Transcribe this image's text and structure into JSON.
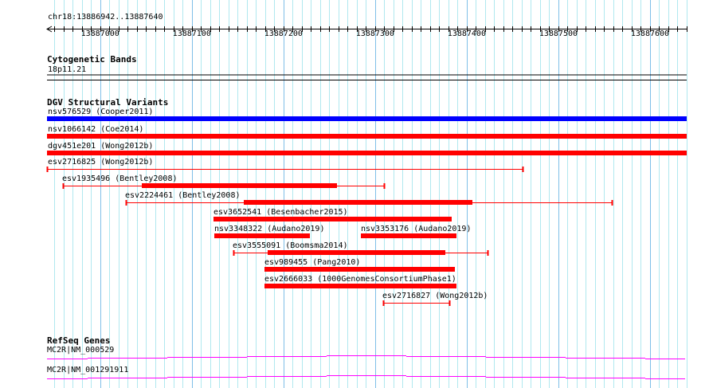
{
  "ruler": {
    "region": "chr18:13886942..13887640",
    "start": 13886942,
    "end": 13887640,
    "tick_labels": [
      "13887000",
      "13887100",
      "13887200",
      "13887300",
      "13887400",
      "13887500",
      "13887600"
    ]
  },
  "tracks": {
    "cytoband": {
      "title": "Cytogenetic Bands",
      "band": "18p11.21"
    },
    "dgv": {
      "title": "DGV Structural Variants",
      "features": [
        {
          "label": "nsv576529 (Cooper2011)",
          "color": "#0000ff"
        },
        {
          "label": "nsv1066142 (Coe2014)",
          "color": "#ff0000"
        },
        {
          "label": "dgv451e201 (Wong2012b)",
          "color": "#ff0000"
        },
        {
          "label": "esv2716825 (Wong2012b)",
          "color": "#ff0000"
        },
        {
          "label": "esv1935496 (Bentley2008)",
          "color": "#ff0000"
        },
        {
          "label": "esv2224461 (Bentley2008)",
          "color": "#ff0000"
        },
        {
          "label": "esv3652541 (Besenbacher2015)",
          "color": "#ff0000"
        },
        {
          "label": "nsv3348322 (Audano2019)",
          "color": "#ff0000"
        },
        {
          "label": "nsv3353176 (Audano2019)",
          "color": "#ff0000"
        },
        {
          "label": "esv3555091 (Boomsma2014)",
          "color": "#ff0000"
        },
        {
          "label": "esv989455 (Pang2010)",
          "color": "#ff0000"
        },
        {
          "label": "esv2666033 (1000GenomesConsortiumPhase1)",
          "color": "#ff0000"
        },
        {
          "label": "esv2716827 (Wong2012b)",
          "color": "#ff0000"
        }
      ]
    },
    "refseq": {
      "title": "RefSeq Genes",
      "color": "#ff00ff",
      "genes": [
        {
          "label": "MC2R|NM_000529"
        },
        {
          "label": "MC2R|NM_001291911"
        }
      ]
    }
  }
}
